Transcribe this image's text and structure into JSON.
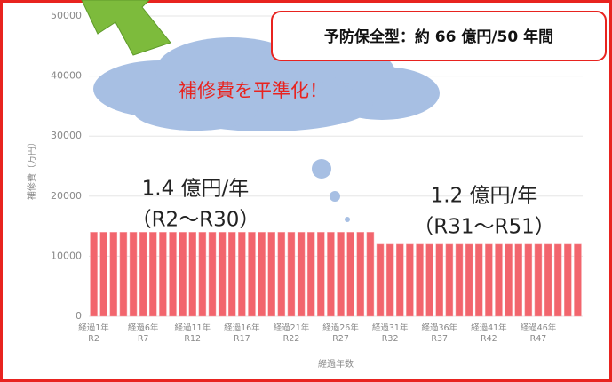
{
  "chart_data": {
    "type": "bar",
    "ylabel": "補修費（万円）",
    "xlabel": "経過年数",
    "categories": [
      "経過1年\nR2",
      null,
      null,
      null,
      null,
      "経過6年\nR7",
      null,
      null,
      null,
      null,
      "経過11年\nR12",
      null,
      null,
      null,
      null,
      "経過16年\nR17",
      null,
      null,
      null,
      null,
      "経過21年\nR22",
      null,
      null,
      null,
      null,
      "経過26年\nR27",
      null,
      null,
      null,
      null,
      "経過31年\nR32",
      null,
      null,
      null,
      null,
      "経過36年\nR37",
      null,
      null,
      null,
      null,
      "経過41年\nR42",
      null,
      null,
      null,
      null,
      "経過46年\nR47",
      null,
      null,
      null,
      null
    ],
    "values": [
      14000,
      14000,
      14000,
      14000,
      14000,
      14000,
      14000,
      14000,
      14000,
      14000,
      14000,
      14000,
      14000,
      14000,
      14000,
      14000,
      14000,
      14000,
      14000,
      14000,
      14000,
      14000,
      14000,
      14000,
      14000,
      14000,
      14000,
      14000,
      14000,
      12000,
      12000,
      12000,
      12000,
      12000,
      12000,
      12000,
      12000,
      12000,
      12000,
      12000,
      12000,
      12000,
      12000,
      12000,
      12000,
      12000,
      12000,
      12000,
      12000,
      12000
    ],
    "color": "#f2656d",
    "ylim": [
      0,
      50000
    ],
    "yticks": [
      0,
      10000,
      20000,
      30000,
      40000,
      50000
    ],
    "grid": true,
    "annotations": {
      "box": "予防保全型：約 66 億円/50 年間",
      "cloud": "補修費を平準化！",
      "left_rate": "1.4 億円/年",
      "left_range": "（R2～R30）",
      "right_rate": "1.2 億円/年",
      "right_range": "（R31～R51）"
    }
  }
}
